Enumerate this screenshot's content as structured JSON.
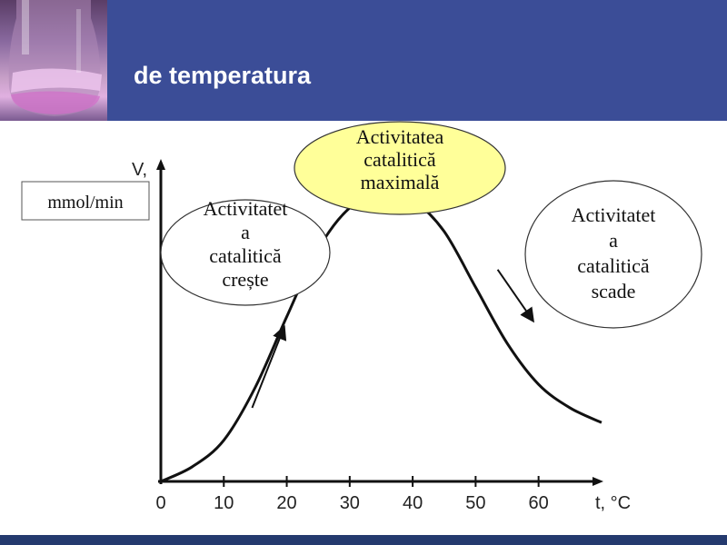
{
  "slide": {
    "title": "de temperatura",
    "header_color": "#3b4d97",
    "footer_color": "#243a6e",
    "photo_icon": "flask-photo-icon"
  },
  "chart_data": {
    "type": "line",
    "xlabel": "t, °C",
    "ylabel": "V,",
    "y_unit_label": "mmol/min",
    "x_ticks": [
      0,
      10,
      20,
      30,
      40,
      50,
      60
    ],
    "x_tick_labels": [
      "0",
      "10",
      "20",
      "30",
      "40",
      "50",
      "60"
    ],
    "xlim": [
      0,
      69
    ],
    "ylim": [
      0,
      1.05
    ],
    "grid": false,
    "series": [
      {
        "x": [
          0,
          5,
          10,
          15,
          20,
          25,
          30,
          35,
          37,
          40,
          45,
          50,
          55,
          60,
          65,
          70
        ],
        "y": [
          0.0,
          0.05,
          0.14,
          0.32,
          0.56,
          0.79,
          0.93,
          0.98,
          0.98,
          0.96,
          0.85,
          0.66,
          0.47,
          0.33,
          0.25,
          0.2
        ],
        "color": "#111111"
      }
    ],
    "peak": {
      "x": 37,
      "y": 0.98
    },
    "arrows": [
      {
        "from": [
          14.5,
          0.25
        ],
        "to": [
          19.5,
          0.52
        ],
        "color": "#111111"
      },
      {
        "from": [
          53.5,
          0.72
        ],
        "to": [
          59.0,
          0.55
        ],
        "color": "#111111"
      }
    ],
    "annotations": [
      {
        "lines": [
          "Activitatea",
          "catalitică",
          "maximală"
        ],
        "fill": "#ffff99",
        "name": "annotation-maximum"
      },
      {
        "lines": [
          "Activitatet",
          "a",
          "catalitică",
          "crește"
        ],
        "fill": "#ffffff",
        "name": "annotation-increase"
      },
      {
        "lines": [
          "Activitatet",
          "a",
          "catalitică",
          "scade"
        ],
        "fill": "#ffffff",
        "name": "annotation-decrease"
      }
    ]
  }
}
